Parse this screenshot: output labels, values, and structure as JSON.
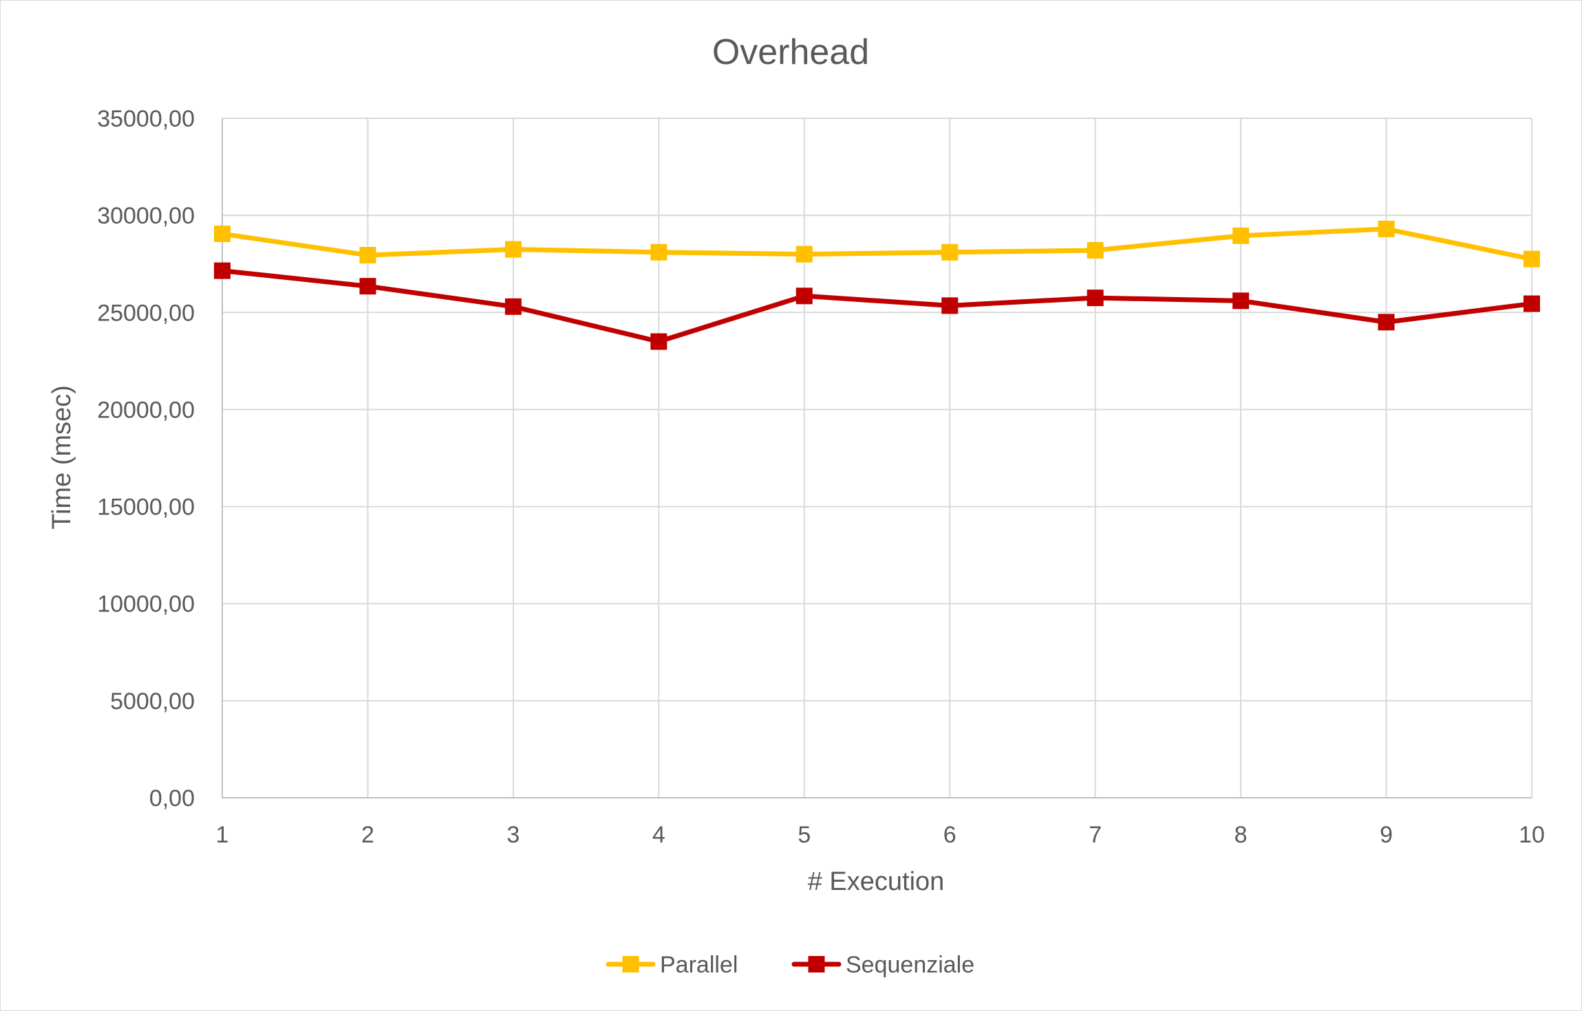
{
  "chart_data": {
    "type": "line",
    "title": "Overhead",
    "xlabel": "# Execution",
    "ylabel": "Time (msec)",
    "categories": [
      "1",
      "2",
      "3",
      "4",
      "5",
      "6",
      "7",
      "8",
      "9",
      "10"
    ],
    "ylim": [
      0,
      35000
    ],
    "yticks": [
      0,
      5000,
      10000,
      15000,
      20000,
      25000,
      30000,
      35000
    ],
    "ytick_labels": [
      "0,00",
      "5000,00",
      "10000,00",
      "15000,00",
      "20000,00",
      "25000,00",
      "30000,00",
      "35000,00"
    ],
    "grid": true,
    "legend_position": "bottom",
    "series": [
      {
        "name": "Parallel",
        "color": "#FFC000",
        "marker": "square",
        "values": [
          29050,
          27950,
          28250,
          28100,
          28000,
          28100,
          28200,
          28950,
          29300,
          27750
        ]
      },
      {
        "name": "Sequenziale",
        "color": "#C00000",
        "marker": "square",
        "values": [
          27150,
          26350,
          25300,
          23500,
          25850,
          25350,
          25750,
          25600,
          24500,
          25450
        ]
      }
    ]
  }
}
